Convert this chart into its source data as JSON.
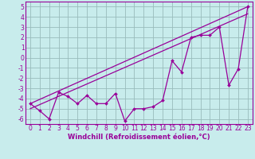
{
  "xlabel": "Windchill (Refroidissement éolien,°C)",
  "background_color": "#c8ecec",
  "line_color": "#990099",
  "grid_color": "#99bbbb",
  "spine_color": "#990099",
  "xlim": [
    -0.5,
    23.5
  ],
  "ylim": [
    -6.5,
    5.5
  ],
  "yticks": [
    -6,
    -5,
    -4,
    -3,
    -2,
    -1,
    0,
    1,
    2,
    3,
    4,
    5
  ],
  "xticks": [
    0,
    1,
    2,
    3,
    4,
    5,
    6,
    7,
    8,
    9,
    10,
    11,
    12,
    13,
    14,
    15,
    16,
    17,
    18,
    19,
    20,
    21,
    22,
    23
  ],
  "data_x": [
    0,
    1,
    2,
    3,
    4,
    5,
    6,
    7,
    8,
    9,
    10,
    11,
    12,
    13,
    14,
    15,
    16,
    17,
    18,
    19,
    20,
    21,
    22,
    23
  ],
  "data_y": [
    -4.5,
    -5.2,
    -6.0,
    -3.4,
    -3.8,
    -4.5,
    -3.7,
    -4.5,
    -4.5,
    -3.5,
    -6.2,
    -5.0,
    -5.0,
    -4.8,
    -4.2,
    -0.3,
    -1.4,
    2.0,
    2.2,
    2.2,
    3.0,
    -2.7,
    -1.1,
    5.0
  ],
  "line1_x": [
    0,
    23
  ],
  "line1_y": [
    -5.0,
    4.3
  ],
  "line2_x": [
    0,
    23
  ],
  "line2_y": [
    -4.5,
    5.0
  ],
  "tick_fontsize": 5.5,
  "xlabel_fontsize": 6.0
}
